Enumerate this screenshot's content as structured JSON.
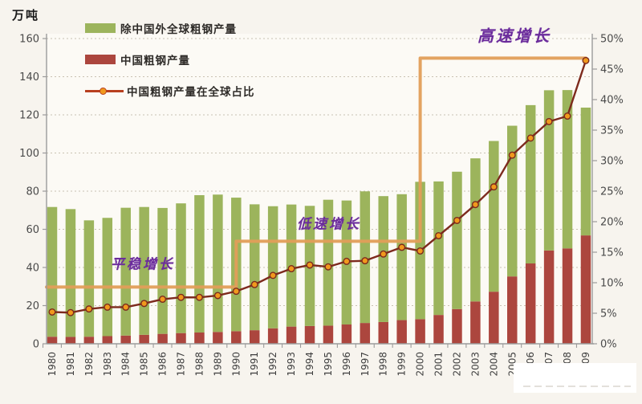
{
  "unit_label": "万吨",
  "legend": {
    "items": [
      {
        "label": "除中国外全球粗钢产量",
        "swatch_color": "#9cb45c",
        "type": "bar"
      },
      {
        "label": "中国粗钢产量",
        "swatch_color": "#ac463e",
        "type": "bar"
      },
      {
        "label": "中国粗钢产量在全球占比",
        "line_color": "#b8401f",
        "marker_color": "#f0991d",
        "type": "line"
      }
    ]
  },
  "annotations": [
    {
      "id": "steady",
      "text": "平稳增长"
    },
    {
      "id": "low",
      "text": "低速增长"
    },
    {
      "id": "high",
      "text": "高速增长"
    }
  ],
  "chart_data": {
    "type": "bar",
    "subtype": "stacked-bars-with-percentage-line",
    "title": "",
    "xlabel": "",
    "ylabel": "万吨",
    "grid": "horizontal-dashed",
    "legend_position": "top-left",
    "categories": [
      "1980",
      "1981",
      "1982",
      "1983",
      "1984",
      "1985",
      "1986",
      "1987",
      "1988",
      "1989",
      "1990",
      "1991",
      "1992",
      "1993",
      "1994",
      "1995",
      "1996",
      "1997",
      "1998",
      "1999",
      "2000",
      "2001",
      "2002",
      "2003",
      "2004",
      "2005",
      "2006",
      "2007",
      "2008",
      "2009"
    ],
    "series": [
      {
        "name": "除中国外全球粗钢产量",
        "type": "bar",
        "stack": "total",
        "axis": "left",
        "color": "#9cb45c",
        "values": [
          68,
          67,
          61,
          62,
          67,
          67,
          66,
          68,
          72,
          72,
          70,
          66,
          64,
          64,
          63,
          66,
          65,
          69,
          66,
          66,
          72,
          70,
          72,
          75,
          79,
          79,
          83,
          84,
          83,
          67
        ]
      },
      {
        "name": "中国粗钢产量",
        "type": "bar",
        "stack": "total",
        "axis": "left",
        "color": "#ac463e",
        "values": [
          3.7,
          3.6,
          3.7,
          4.0,
          4.3,
          4.7,
          5.2,
          5.6,
          5.9,
          6.2,
          6.6,
          7.1,
          8.1,
          9.0,
          9.3,
          9.5,
          10.1,
          10.9,
          11.4,
          12.4,
          12.9,
          15.1,
          18.2,
          22.2,
          27.3,
          35.3,
          42.1,
          48.9,
          50.0,
          56.8
        ]
      },
      {
        "name": "中国粗钢产量在全球占比",
        "type": "line",
        "axis": "right",
        "color": "#7d2a1d",
        "marker_color": "#f0991d",
        "values_pct": [
          5.2,
          5.1,
          5.7,
          6.0,
          6.0,
          6.6,
          7.3,
          7.6,
          7.6,
          7.9,
          8.6,
          9.7,
          11.2,
          12.3,
          12.9,
          12.6,
          13.5,
          13.6,
          14.7,
          15.8,
          15.2,
          17.7,
          20.2,
          22.8,
          25.7,
          30.9,
          33.7,
          36.4,
          37.3,
          46.4
        ]
      }
    ],
    "left_axis": {
      "min": 0,
      "max": 160,
      "tick_step": 20,
      "ticks": [
        "0",
        "20",
        "40",
        "60",
        "80",
        "100",
        "120",
        "140",
        "160"
      ]
    },
    "right_axis": {
      "min": 0,
      "max": 50,
      "tick_step": 5,
      "ticks": [
        "0%",
        "5%",
        "10%",
        "15%",
        "20%",
        "25%",
        "30%",
        "35%",
        "40%",
        "45%",
        "50%"
      ]
    },
    "phase_step_line": {
      "color": "#e29e58",
      "description": "growth-phase step annotation",
      "points": [
        {
          "at": "axis-left",
          "pct": 9.3
        },
        {
          "year": "1990",
          "pct": 9.3
        },
        {
          "year": "1990",
          "pct": 16.8
        },
        {
          "year": "2000",
          "pct": 16.8
        },
        {
          "year": "2000",
          "pct": 46.8
        },
        {
          "year": "2009",
          "pct": 46.8
        }
      ]
    }
  }
}
